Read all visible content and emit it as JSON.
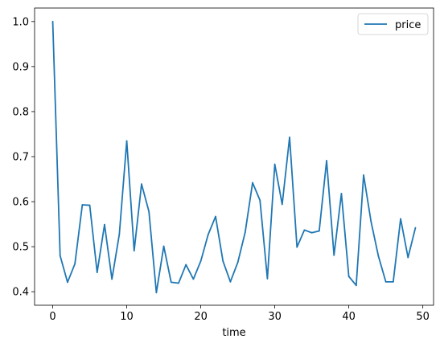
{
  "chart_data": {
    "type": "line",
    "title": "",
    "xlabel": "time",
    "ylabel": "",
    "xlim": [
      -2.45,
      51.45
    ],
    "ylim": [
      0.37,
      1.03
    ],
    "xticks": [
      0,
      10,
      20,
      30,
      40,
      50
    ],
    "yticks": [
      0.4,
      0.5,
      0.6,
      0.7,
      0.8,
      0.9,
      1.0
    ],
    "xtick_labels": [
      "0",
      "10",
      "20",
      "30",
      "40",
      "50"
    ],
    "ytick_labels": [
      "0.4",
      "0.5",
      "0.6",
      "0.7",
      "0.8",
      "0.9",
      "1.0"
    ],
    "grid": false,
    "legend_position": "top-right",
    "series": [
      {
        "name": "price",
        "color": "#1f77b4",
        "x": [
          0,
          1,
          2,
          3,
          4,
          5,
          6,
          7,
          8,
          9,
          10,
          11,
          12,
          13,
          14,
          15,
          16,
          17,
          18,
          19,
          20,
          21,
          22,
          23,
          24,
          25,
          26,
          27,
          28,
          29,
          30,
          31,
          32,
          33,
          34,
          35,
          36,
          37,
          38,
          39,
          40,
          41,
          42,
          43,
          44,
          45,
          46,
          47,
          48,
          49
        ],
        "y": [
          1.0,
          0.48,
          0.421,
          0.462,
          0.593,
          0.592,
          0.443,
          0.549,
          0.428,
          0.528,
          0.735,
          0.491,
          0.639,
          0.578,
          0.398,
          0.501,
          0.421,
          0.419,
          0.46,
          0.428,
          0.468,
          0.527,
          0.567,
          0.468,
          0.422,
          0.465,
          0.532,
          0.642,
          0.603,
          0.429,
          0.683,
          0.594,
          0.743,
          0.499,
          0.537,
          0.531,
          0.535,
          0.691,
          0.481,
          0.618,
          0.434,
          0.414,
          0.659,
          0.556,
          0.479,
          0.422,
          0.422,
          0.562,
          0.476,
          0.542
        ]
      }
    ]
  }
}
